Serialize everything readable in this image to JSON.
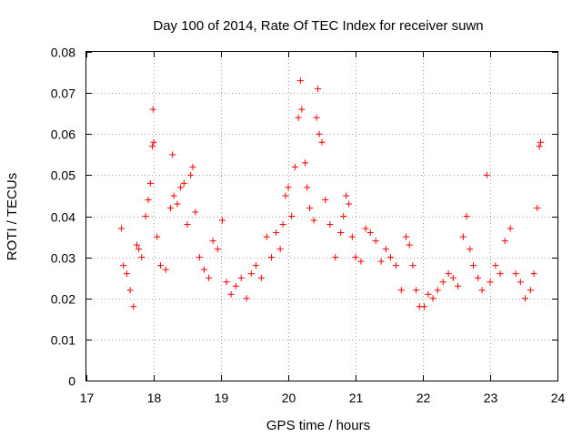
{
  "chart_data": {
    "type": "scatter",
    "title": "Day 100 of 2014, Rate Of TEC Index for receiver suwn",
    "xlabel": "GPS time / hours",
    "ylabel": "ROTI / TECUs",
    "xlim": [
      17,
      24
    ],
    "ylim": [
      0,
      0.08
    ],
    "xticks": [
      17,
      18,
      19,
      20,
      21,
      22,
      23,
      24
    ],
    "yticks": [
      0,
      0.01,
      0.02,
      0.03,
      0.04,
      0.05,
      0.06,
      0.07,
      0.08
    ],
    "ytick_labels": [
      "0",
      "0.01",
      "0.02",
      "0.03",
      "0.04",
      "0.05",
      "0.06",
      "0.07",
      "0.08"
    ],
    "grid": true,
    "marker": "+",
    "series_color": "#ff0000",
    "series": [
      {
        "name": "ROTI",
        "points": [
          [
            17.52,
            0.037
          ],
          [
            17.55,
            0.028
          ],
          [
            17.6,
            0.026
          ],
          [
            17.65,
            0.022
          ],
          [
            17.7,
            0.018
          ],
          [
            17.75,
            0.033
          ],
          [
            17.78,
            0.032
          ],
          [
            17.82,
            0.03
          ],
          [
            17.88,
            0.04
          ],
          [
            17.92,
            0.044
          ],
          [
            17.95,
            0.048
          ],
          [
            17.98,
            0.057
          ],
          [
            17.99,
            0.066
          ],
          [
            18.0,
            0.058
          ],
          [
            18.05,
            0.035
          ],
          [
            18.1,
            0.028
          ],
          [
            18.18,
            0.027
          ],
          [
            18.25,
            0.042
          ],
          [
            18.28,
            0.055
          ],
          [
            18.3,
            0.045
          ],
          [
            18.35,
            0.043
          ],
          [
            18.4,
            0.047
          ],
          [
            18.45,
            0.048
          ],
          [
            18.5,
            0.038
          ],
          [
            18.55,
            0.05
          ],
          [
            18.58,
            0.052
          ],
          [
            18.62,
            0.041
          ],
          [
            18.68,
            0.03
          ],
          [
            18.75,
            0.027
          ],
          [
            18.82,
            0.025
          ],
          [
            18.88,
            0.034
          ],
          [
            18.95,
            0.032
          ],
          [
            19.02,
            0.039
          ],
          [
            19.08,
            0.024
          ],
          [
            19.15,
            0.021
          ],
          [
            19.22,
            0.023
          ],
          [
            19.3,
            0.025
          ],
          [
            19.38,
            0.02
          ],
          [
            19.45,
            0.026
          ],
          [
            19.52,
            0.028
          ],
          [
            19.6,
            0.025
          ],
          [
            19.68,
            0.035
          ],
          [
            19.75,
            0.03
          ],
          [
            19.82,
            0.036
          ],
          [
            19.88,
            0.032
          ],
          [
            19.92,
            0.038
          ],
          [
            19.96,
            0.045
          ],
          [
            20.0,
            0.047
          ],
          [
            20.05,
            0.04
          ],
          [
            20.1,
            0.052
          ],
          [
            20.15,
            0.064
          ],
          [
            20.18,
            0.073
          ],
          [
            20.2,
            0.066
          ],
          [
            20.25,
            0.053
          ],
          [
            20.28,
            0.047
          ],
          [
            20.32,
            0.042
          ],
          [
            20.38,
            0.039
          ],
          [
            20.42,
            0.064
          ],
          [
            20.44,
            0.071
          ],
          [
            20.46,
            0.06
          ],
          [
            20.5,
            0.058
          ],
          [
            20.55,
            0.044
          ],
          [
            20.62,
            0.038
          ],
          [
            20.7,
            0.03
          ],
          [
            20.78,
            0.036
          ],
          [
            20.82,
            0.04
          ],
          [
            20.86,
            0.045
          ],
          [
            20.9,
            0.043
          ],
          [
            20.95,
            0.035
          ],
          [
            21.0,
            0.03
          ],
          [
            21.08,
            0.029
          ],
          [
            21.15,
            0.037
          ],
          [
            21.22,
            0.036
          ],
          [
            21.3,
            0.034
          ],
          [
            21.38,
            0.029
          ],
          [
            21.45,
            0.032
          ],
          [
            21.52,
            0.03
          ],
          [
            21.6,
            0.028
          ],
          [
            21.68,
            0.022
          ],
          [
            21.75,
            0.035
          ],
          [
            21.8,
            0.033
          ],
          [
            21.85,
            0.028
          ],
          [
            21.9,
            0.022
          ],
          [
            21.95,
            0.018
          ],
          [
            22.02,
            0.018
          ],
          [
            22.08,
            0.021
          ],
          [
            22.15,
            0.02
          ],
          [
            22.22,
            0.022
          ],
          [
            22.3,
            0.024
          ],
          [
            22.38,
            0.026
          ],
          [
            22.45,
            0.025
          ],
          [
            22.52,
            0.023
          ],
          [
            22.6,
            0.035
          ],
          [
            22.65,
            0.04
          ],
          [
            22.7,
            0.032
          ],
          [
            22.75,
            0.028
          ],
          [
            22.82,
            0.025
          ],
          [
            22.88,
            0.022
          ],
          [
            22.95,
            0.05
          ],
          [
            23.0,
            0.024
          ],
          [
            23.08,
            0.028
          ],
          [
            23.15,
            0.026
          ],
          [
            23.22,
            0.034
          ],
          [
            23.3,
            0.037
          ],
          [
            23.38,
            0.026
          ],
          [
            23.45,
            0.024
          ],
          [
            23.52,
            0.02
          ],
          [
            23.6,
            0.022
          ],
          [
            23.65,
            0.026
          ],
          [
            23.7,
            0.042
          ],
          [
            23.73,
            0.057
          ],
          [
            23.75,
            0.058
          ]
        ]
      }
    ]
  }
}
